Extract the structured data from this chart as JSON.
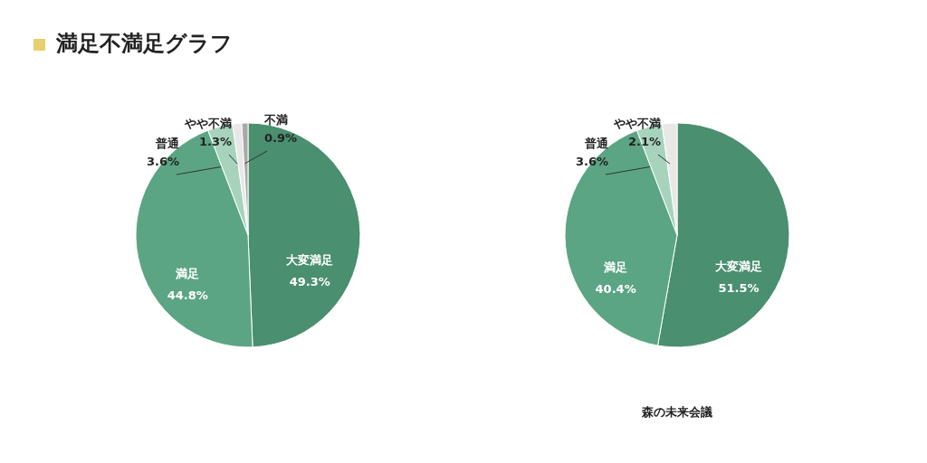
{
  "chart_data": [
    {
      "type": "pie",
      "title": "満足不満足グラフ",
      "categories": [
        "大変満足",
        "満足",
        "普通",
        "やや不満",
        "不満"
      ],
      "values": [
        49.3,
        44.8,
        3.6,
        1.3,
        0.9
      ],
      "value_labels": [
        "49.3%",
        "44.8%",
        "3.6%",
        "1.3%",
        "0.9%"
      ],
      "colors": [
        "#4a8f6f",
        "#5ba584",
        "#a7d3bd",
        "#e8e8e8",
        "#a9a9a9"
      ]
    },
    {
      "type": "pie",
      "xlabel": "森の未来会議",
      "categories": [
        "大変満足",
        "満足",
        "普通",
        "やや不満"
      ],
      "values": [
        51.5,
        40.4,
        3.6,
        2.1
      ],
      "value_labels": [
        "51.5%",
        "40.4%",
        "3.6%",
        "2.1%"
      ],
      "colors": [
        "#4a8f6f",
        "#5ba584",
        "#a7d3bd",
        "#e8e8e8"
      ]
    }
  ]
}
